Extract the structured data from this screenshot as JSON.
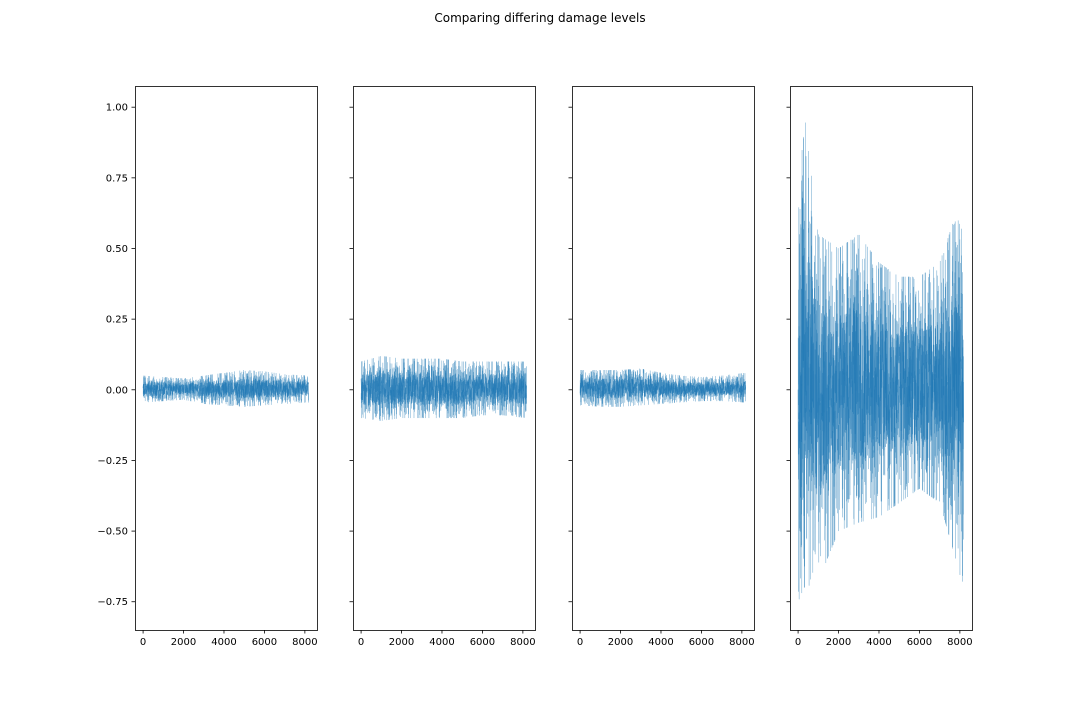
{
  "chart_data": {
    "type": "line",
    "title": "Comparing differing damage levels",
    "sharey": true,
    "xlim": [
      -400,
      8600
    ],
    "ylim": [
      -0.85,
      1.075
    ],
    "xticks": [
      0,
      2000,
      4000,
      6000,
      8000
    ],
    "xtick_labels": [
      "0",
      "2000",
      "4000",
      "6000",
      "8000"
    ],
    "yticks": [
      1.0,
      0.75,
      0.5,
      0.25,
      0.0,
      -0.25,
      -0.5,
      -0.75
    ],
    "ytick_labels": [
      "1.00",
      "0.75",
      "0.50",
      "0.25",
      "0.00",
      "−0.25",
      "−0.50",
      "−0.75"
    ],
    "color": "#1f77b4",
    "line_alpha": 0.4,
    "line_width": 0.5,
    "n_samples": 8192,
    "panels": [
      {
        "name": "",
        "envelope": [
          {
            "x": 0,
            "min": -0.045,
            "max": 0.05
          },
          {
            "x": 1000,
            "min": -0.04,
            "max": 0.045
          },
          {
            "x": 2000,
            "min": -0.035,
            "max": 0.04
          },
          {
            "x": 3000,
            "min": -0.05,
            "max": 0.05
          },
          {
            "x": 4000,
            "min": -0.055,
            "max": 0.06
          },
          {
            "x": 5000,
            "min": -0.06,
            "max": 0.07
          },
          {
            "x": 6000,
            "min": -0.055,
            "max": 0.065
          },
          {
            "x": 7000,
            "min": -0.05,
            "max": 0.055
          },
          {
            "x": 8191,
            "min": -0.045,
            "max": 0.05
          }
        ]
      },
      {
        "name": "",
        "envelope": [
          {
            "x": 0,
            "min": -0.1,
            "max": 0.1
          },
          {
            "x": 1000,
            "min": -0.11,
            "max": 0.12
          },
          {
            "x": 2000,
            "min": -0.1,
            "max": 0.11
          },
          {
            "x": 3000,
            "min": -0.1,
            "max": 0.11
          },
          {
            "x": 4000,
            "min": -0.1,
            "max": 0.11
          },
          {
            "x": 5000,
            "min": -0.1,
            "max": 0.1
          },
          {
            "x": 6000,
            "min": -0.09,
            "max": 0.1
          },
          {
            "x": 7000,
            "min": -0.09,
            "max": 0.1
          },
          {
            "x": 8191,
            "min": -0.1,
            "max": 0.1
          }
        ]
      },
      {
        "name": "",
        "envelope": [
          {
            "x": 0,
            "min": -0.055,
            "max": 0.07
          },
          {
            "x": 1000,
            "min": -0.06,
            "max": 0.07
          },
          {
            "x": 2000,
            "min": -0.06,
            "max": 0.07
          },
          {
            "x": 3000,
            "min": -0.055,
            "max": 0.075
          },
          {
            "x": 4000,
            "min": -0.05,
            "max": 0.06
          },
          {
            "x": 5000,
            "min": -0.045,
            "max": 0.05
          },
          {
            "x": 6000,
            "min": -0.04,
            "max": 0.045
          },
          {
            "x": 7000,
            "min": -0.04,
            "max": 0.05
          },
          {
            "x": 8191,
            "min": -0.045,
            "max": 0.06
          }
        ]
      },
      {
        "name": "",
        "envelope": [
          {
            "x": 0,
            "min": -0.75,
            "max": 0.6
          },
          {
            "x": 300,
            "min": -0.7,
            "max": 0.98
          },
          {
            "x": 1000,
            "min": -0.68,
            "max": 0.55
          },
          {
            "x": 2000,
            "min": -0.5,
            "max": 0.5
          },
          {
            "x": 3000,
            "min": -0.47,
            "max": 0.55
          },
          {
            "x": 4000,
            "min": -0.45,
            "max": 0.45
          },
          {
            "x": 5000,
            "min": -0.4,
            "max": 0.4
          },
          {
            "x": 6000,
            "min": -0.35,
            "max": 0.4
          },
          {
            "x": 7000,
            "min": -0.4,
            "max": 0.45
          },
          {
            "x": 7800,
            "min": -0.6,
            "max": 0.62
          },
          {
            "x": 8191,
            "min": -0.77,
            "max": 0.55
          }
        ]
      }
    ]
  }
}
